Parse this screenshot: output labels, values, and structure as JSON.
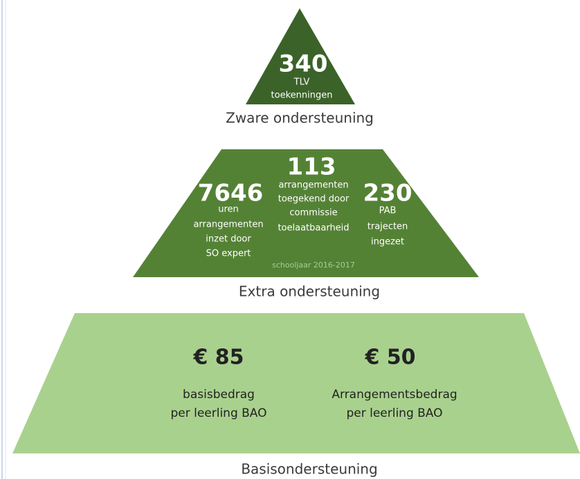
{
  "levels": [
    {
      "caption": "Zware ondersteuning",
      "stats": [
        {
          "value": "340",
          "lines": [
            "TLV",
            "toekenningen"
          ]
        }
      ]
    },
    {
      "caption": "Extra ondersteuning",
      "stats": [
        {
          "value": "7646",
          "lines": [
            "uren",
            "arrangementen",
            "inzet door",
            "SO expert"
          ]
        },
        {
          "value": "113",
          "lines": [
            "arrangementen",
            "toegekend door",
            "commissie",
            "toelaatbaarheid"
          ]
        },
        {
          "value": "230",
          "lines": [
            "PAB",
            "trajecten",
            "ingezet"
          ]
        }
      ],
      "note": "schooljaar 2016-2017"
    },
    {
      "caption": "Basisondersteuning",
      "stats": [
        {
          "value": "€ 85",
          "lines": [
            "basisbedrag",
            "per leerling BAO"
          ]
        },
        {
          "value": "€ 50",
          "lines": [
            "Arrangementsbedrag",
            "per leerling BAO"
          ]
        }
      ]
    }
  ]
}
